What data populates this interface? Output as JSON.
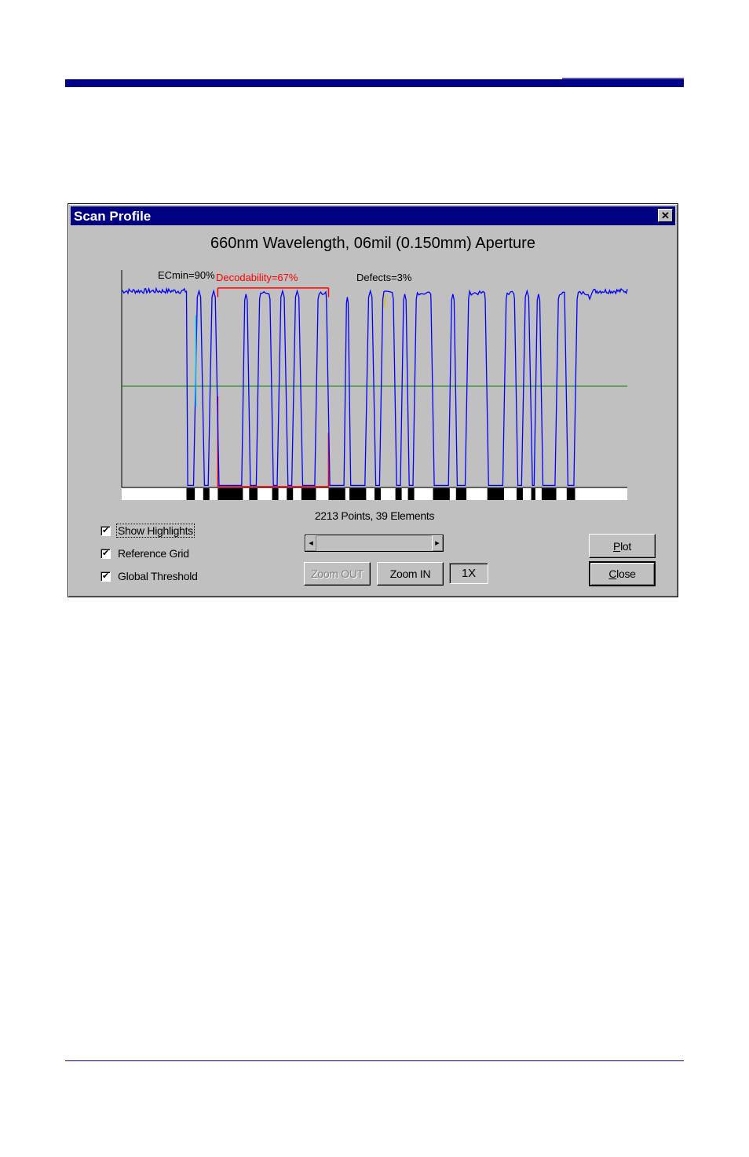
{
  "dialog": {
    "title": "Scan Profile",
    "close_glyph": "✕"
  },
  "chart_data": {
    "type": "line",
    "title": "660nm Wavelength, 06mil (0.150mm) Aperture",
    "annotations": {
      "ecmin": "ECmin=90%",
      "decodability": "Decodability=67%",
      "defects": "Defects=3%"
    },
    "y_range": [
      0,
      100
    ],
    "threshold": 50,
    "grid": false,
    "series": [
      {
        "color": "#0000ff",
        "profile": {
          "high": 97,
          "low": 0,
          "left_quiet_end": 31,
          "right_quiet_start": 225,
          "width_units": 242,
          "bar_runs": [
            [
              31,
              35
            ],
            [
              39,
              42
            ],
            [
              46,
              58
            ],
            [
              61,
              65
            ],
            [
              72,
              75
            ],
            [
              79,
              82
            ],
            [
              86,
              93
            ],
            [
              99,
              107
            ],
            [
              109,
              117
            ],
            [
              121,
              124
            ],
            [
              131,
              134
            ],
            [
              137,
              140
            ],
            [
              149,
              157
            ],
            [
              160,
              165
            ],
            [
              175,
              183
            ],
            [
              189,
              192
            ],
            [
              196,
              198
            ],
            [
              201,
              208
            ],
            [
              213,
              217
            ]
          ]
        }
      }
    ],
    "decodability_region": [
      46,
      99
    ],
    "elements_strip_bars": [
      [
        31,
        35
      ],
      [
        39,
        42
      ],
      [
        46,
        58
      ],
      [
        61,
        65
      ],
      [
        72,
        75
      ],
      [
        79,
        82
      ],
      [
        86,
        93
      ],
      [
        99,
        107
      ],
      [
        109,
        117
      ],
      [
        121,
        124
      ],
      [
        131,
        134
      ],
      [
        137,
        140
      ],
      [
        149,
        157
      ],
      [
        160,
        165
      ],
      [
        175,
        183
      ],
      [
        189,
        192
      ],
      [
        196,
        198
      ],
      [
        201,
        208
      ],
      [
        213,
        217
      ]
    ],
    "colors": {
      "signal": "#0000ff",
      "threshold": "#008000",
      "highlight": "#ff0000",
      "axis": "#000000",
      "ecmin_marker": "#00c0ff",
      "defect_marker": "#e0c000"
    }
  },
  "info": {
    "points_elements": "2213 Points, 39 Elements"
  },
  "options": {
    "show_highlights": {
      "label": "Show Highlights",
      "checked": true,
      "glyph": "✔"
    },
    "reference_grid": {
      "label": "Reference Grid",
      "checked": true,
      "glyph": "✔"
    },
    "global_threshold": {
      "label": "Global Threshold",
      "checked": true,
      "glyph": "✔"
    }
  },
  "scroll": {
    "left_glyph": "◂",
    "right_glyph": "▸"
  },
  "buttons": {
    "zoom_out": "Zoom OUT",
    "zoom_in": "Zoom IN",
    "zoom_level": "1X",
    "plot_u": "P",
    "plot_rest": "lot",
    "close_u": "C",
    "close_rest": "lose"
  }
}
